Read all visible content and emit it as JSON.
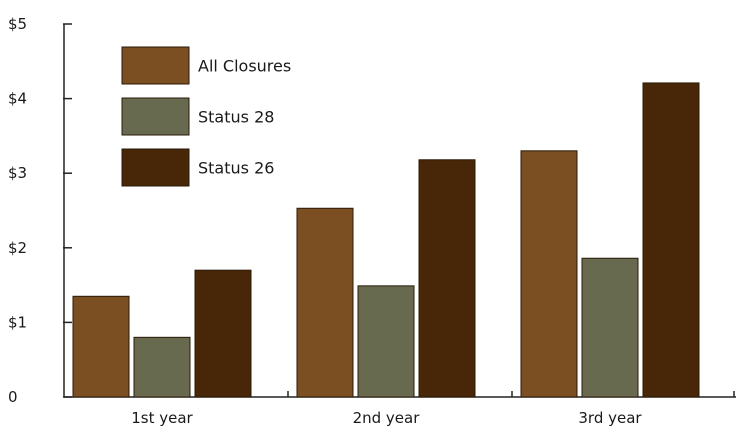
{
  "chart_data": {
    "type": "bar",
    "title": "",
    "xlabel": "",
    "ylabel": "",
    "categories": [
      "1st year",
      "2nd year",
      "3rd year"
    ],
    "series": [
      {
        "name": "All Closures",
        "color": "#7b4f22",
        "values": [
          1.35,
          2.53,
          3.3
        ]
      },
      {
        "name": "Status 28",
        "color": "#686a4f",
        "values": [
          0.8,
          1.49,
          1.86
        ]
      },
      {
        "name": "Status 26",
        "color": "#472708",
        "values": [
          1.7,
          3.18,
          4.21
        ]
      }
    ],
    "ylim": [
      0,
      5
    ],
    "yticks": [
      0,
      1,
      2,
      3,
      4,
      5
    ],
    "ytick_labels": [
      "0",
      "$1",
      "$2",
      "$3",
      "$4",
      "$5"
    ],
    "grid": false,
    "legend_position": "top-left",
    "bar_stroke_color": "#2b1a08"
  }
}
